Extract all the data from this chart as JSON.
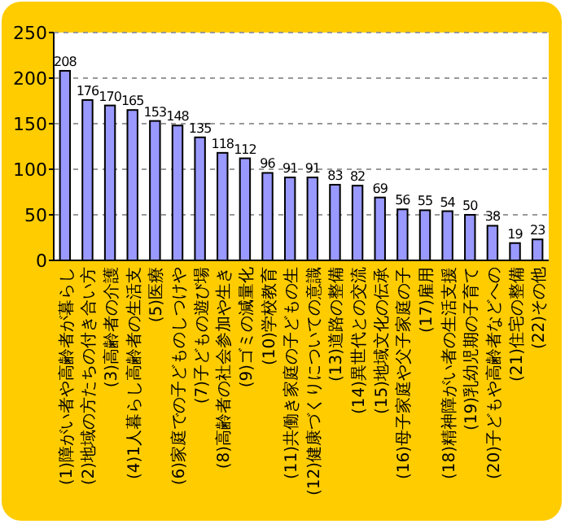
{
  "chart_data": {
    "type": "bar",
    "categories": [
      "(1)障がい者や高齢者が暮らし",
      "(2)地域の方たちの付き合い方",
      "(3)高齢者の介護",
      "(4)1人暮らし高齢者の生活支",
      "(5)医療",
      "(6)家庭での子どものしつけや",
      "(7)子どもの遊び場",
      "(8)高齢者の社会参加や生き",
      "(9)ゴミの減量化",
      "(10)学校教育",
      "(11)共働き家庭の子どもの生",
      "(12)健康づくりについての意識",
      "(13)道路の整備",
      "(14)異世代との交流",
      "(15)地域文化の伝承",
      "(16)母子家庭や父子家庭の子",
      "(17)雇用",
      "(18)精神障がい者の生活支援",
      "(19)乳幼児期の子育て",
      "(20)子どもや高齢者などへの",
      "(21)住宅の整備",
      "(22)その他"
    ],
    "values": [
      208,
      176,
      170,
      165,
      153,
      148,
      135,
      118,
      112,
      96,
      91,
      91,
      83,
      82,
      69,
      56,
      55,
      54,
      50,
      38,
      19,
      23
    ],
    "color": "#9999ff",
    "ylim": [
      0,
      250
    ],
    "yticks": [
      0,
      50,
      100,
      150,
      200,
      250
    ],
    "grid": "y",
    "data_labels": true
  }
}
